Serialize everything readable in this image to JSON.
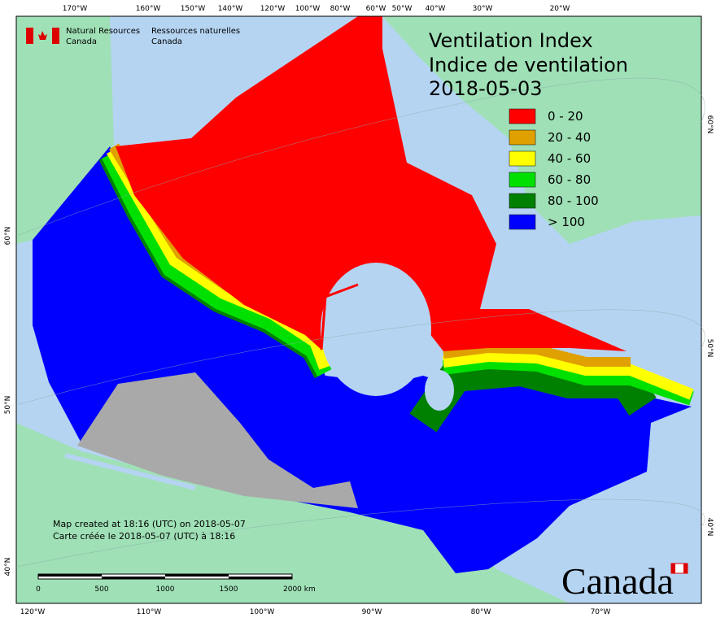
{
  "header": {
    "agency_en": [
      "Natural Resources",
      "Canada"
    ],
    "agency_fr": [
      "Ressources naturelles",
      "Canada"
    ]
  },
  "title": [
    "Ventilation Index",
    "Indice de ventilation",
    "2018-05-03"
  ],
  "legend": [
    {
      "label": "0 - 20",
      "color": "#ff0000"
    },
    {
      "label": "20 - 40",
      "color": "#e0a000"
    },
    {
      "label": "40 - 60",
      "color": "#ffff00"
    },
    {
      "label": "60 - 80",
      "color": "#00e000"
    },
    {
      "label": "80 - 100",
      "color": "#008000"
    },
    {
      "label": "> 100",
      "color": "#0000ff"
    }
  ],
  "top_axis": [
    "170°W",
    "160°W",
    "150°W",
    "140°W",
    "120°W",
    "100°W",
    "80°W",
    "60°W",
    "50°W",
    "40°W",
    "30°W",
    "20°W"
  ],
  "bottom_axis": [
    "120°W",
    "110°W",
    "100°W",
    "90°W",
    "80°W",
    "70°W"
  ],
  "left_axis": [
    "60°N",
    "50°N",
    "40°N"
  ],
  "right_axis": [
    "60°N",
    "50°N",
    "40°N"
  ],
  "notes": [
    "Map created at 18:16 (UTC) on 2018-05-07",
    "Carte créée le 2018-05-07 (UTC) à 18:16"
  ],
  "scale_bar": [
    "0",
    "500",
    "1000",
    "1500",
    "2000  km"
  ],
  "wordmark": "Canada"
}
